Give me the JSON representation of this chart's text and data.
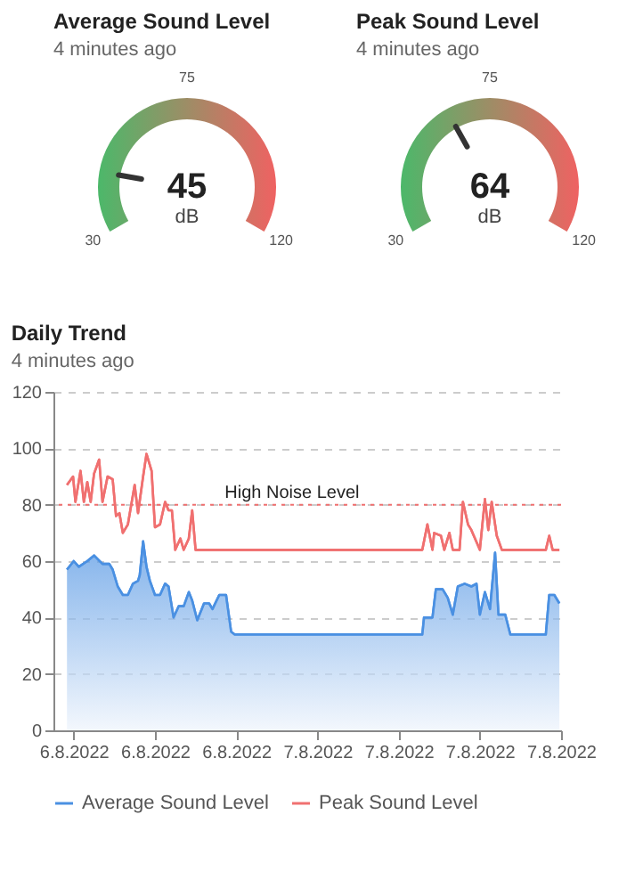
{
  "chart_data": [
    {
      "type": "other",
      "title": "Average Sound Level",
      "subtitle": "4 minutes ago",
      "values": [
        45
      ],
      "data_labels": true,
      "annotations": [
        "dB",
        "30",
        "75",
        "120"
      ],
      "color": "#4cb86a"
    },
    {
      "type": "other",
      "title": "Peak Sound Level",
      "subtitle": "4 minutes ago",
      "values": [
        64
      ],
      "data_labels": true,
      "annotations": [
        "dB",
        "30",
        "75",
        "120"
      ],
      "color": "#4cb86a"
    },
    {
      "type": "line",
      "title": "Daily Trend",
      "subtitle": "4 minutes ago",
      "xlim": [
        "2022-08-06T11:00",
        "2022-08-07T12:00"
      ],
      "xticks": [
        {
          "value": "2022-08-06T12:00",
          "label": "6.8.2022"
        },
        {
          "value": "2022-08-06T16:00",
          "label": "6.8.2022"
        },
        {
          "value": "2022-08-06T20:00",
          "label": "6.8.2022"
        },
        {
          "value": "2022-08-07T00:00",
          "label": "7.8.2022"
        },
        {
          "value": "2022-08-07T04:00",
          "label": "7.8.2022"
        },
        {
          "value": "2022-08-07T08:00",
          "label": "7.8.2022"
        },
        {
          "value": "2022-08-07T12:00",
          "label": "7.8.2022"
        }
      ],
      "ylim": [
        0,
        120
      ],
      "yticks": [
        0,
        20,
        40,
        60,
        80,
        100,
        120
      ],
      "grid": "y",
      "legend": "bottom",
      "ref_lines": [
        {
          "axis": "y",
          "value": 80,
          "label": "High Noise Level",
          "color": "#f07070",
          "line_style": "dotted"
        }
      ],
      "series": [
        {
          "name": "Average Sound Level",
          "type": "area",
          "color": "#4a90e2",
          "x": [
            "2022-08-06T11:40",
            "2022-08-06T12:00",
            "2022-08-06T12:15",
            "2022-08-06T12:40",
            "2022-08-06T13:00",
            "2022-08-06T13:25",
            "2022-08-06T13:45",
            "2022-08-06T13:55",
            "2022-08-06T14:10",
            "2022-08-06T14:25",
            "2022-08-06T14:40",
            "2022-08-06T14:55",
            "2022-08-06T15:10",
            "2022-08-06T15:15",
            "2022-08-06T15:25",
            "2022-08-06T15:35",
            "2022-08-06T15:45",
            "2022-08-06T16:00",
            "2022-08-06T16:15",
            "2022-08-06T16:30",
            "2022-08-06T16:40",
            "2022-08-06T16:55",
            "2022-08-06T17:10",
            "2022-08-06T17:25",
            "2022-08-06T17:40",
            "2022-08-06T17:50",
            "2022-08-06T18:05",
            "2022-08-06T18:25",
            "2022-08-06T18:40",
            "2022-08-06T18:50",
            "2022-08-06T19:10",
            "2022-08-06T19:30",
            "2022-08-06T19:45",
            "2022-08-06T19:55",
            "2022-08-07T05:10",
            "2022-08-07T05:15",
            "2022-08-07T05:40",
            "2022-08-07T05:50",
            "2022-08-07T06:10",
            "2022-08-07T06:25",
            "2022-08-07T06:40",
            "2022-08-07T06:55",
            "2022-08-07T07:15",
            "2022-08-07T07:35",
            "2022-08-07T07:50",
            "2022-08-07T08:00",
            "2022-08-07T08:15",
            "2022-08-07T08:30",
            "2022-08-07T08:45",
            "2022-08-07T08:55",
            "2022-08-07T09:15",
            "2022-08-07T09:30",
            "2022-08-07T11:15",
            "2022-08-07T11:25",
            "2022-08-07T11:40",
            "2022-08-07T11:55"
          ],
          "values": [
            57,
            60,
            58,
            60,
            62,
            59,
            59,
            57,
            51,
            48,
            48,
            52,
            53,
            55,
            67,
            58,
            53,
            48,
            48,
            52,
            51,
            40,
            44,
            44,
            49,
            46,
            39,
            45,
            45,
            43,
            48,
            48,
            35,
            34,
            34,
            40,
            40,
            50,
            50,
            47,
            41,
            51,
            52,
            51,
            52,
            41,
            49,
            43,
            63,
            41,
            41,
            34,
            34,
            48,
            48,
            45
          ]
        },
        {
          "name": "Peak Sound Level",
          "type": "line",
          "color": "#f07070",
          "x": [
            "2022-08-06T11:40",
            "2022-08-06T11:58",
            "2022-08-06T12:05",
            "2022-08-06T12:20",
            "2022-08-06T12:30",
            "2022-08-06T12:40",
            "2022-08-06T12:50",
            "2022-08-06T13:00",
            "2022-08-06T13:15",
            "2022-08-06T13:25",
            "2022-08-06T13:40",
            "2022-08-06T13:55",
            "2022-08-06T14:05",
            "2022-08-06T14:15",
            "2022-08-06T14:25",
            "2022-08-06T14:40",
            "2022-08-06T15:00",
            "2022-08-06T15:10",
            "2022-08-06T15:25",
            "2022-08-06T15:35",
            "2022-08-06T15:50",
            "2022-08-06T16:00",
            "2022-08-06T16:15",
            "2022-08-06T16:30",
            "2022-08-06T16:40",
            "2022-08-06T16:50",
            "2022-08-06T17:00",
            "2022-08-06T17:15",
            "2022-08-06T17:25",
            "2022-08-06T17:40",
            "2022-08-06T17:50",
            "2022-08-06T18:00",
            "2022-08-07T05:10",
            "2022-08-07T05:25",
            "2022-08-07T05:40",
            "2022-08-07T05:45",
            "2022-08-07T06:05",
            "2022-08-07T06:15",
            "2022-08-07T06:30",
            "2022-08-07T06:40",
            "2022-08-07T07:00",
            "2022-08-07T07:10",
            "2022-08-07T07:25",
            "2022-08-07T07:35",
            "2022-08-07T08:00",
            "2022-08-07T08:15",
            "2022-08-07T08:25",
            "2022-08-07T08:35",
            "2022-08-07T08:50",
            "2022-08-07T09:05",
            "2022-08-07T11:15",
            "2022-08-07T11:25",
            "2022-08-07T11:35",
            "2022-08-07T11:55"
          ],
          "values": [
            87,
            90,
            81,
            92,
            81,
            88,
            81,
            91,
            96,
            81,
            90,
            89,
            76,
            77,
            70,
            73,
            87,
            77,
            90,
            98,
            92,
            72,
            73,
            81,
            78,
            78,
            64,
            68,
            64,
            68,
            78,
            64,
            64,
            73,
            64,
            70,
            69,
            64,
            70,
            64,
            64,
            81,
            73,
            71,
            64,
            82,
            71,
            81,
            69,
            64,
            64,
            69,
            64,
            64
          ]
        }
      ]
    }
  ]
}
